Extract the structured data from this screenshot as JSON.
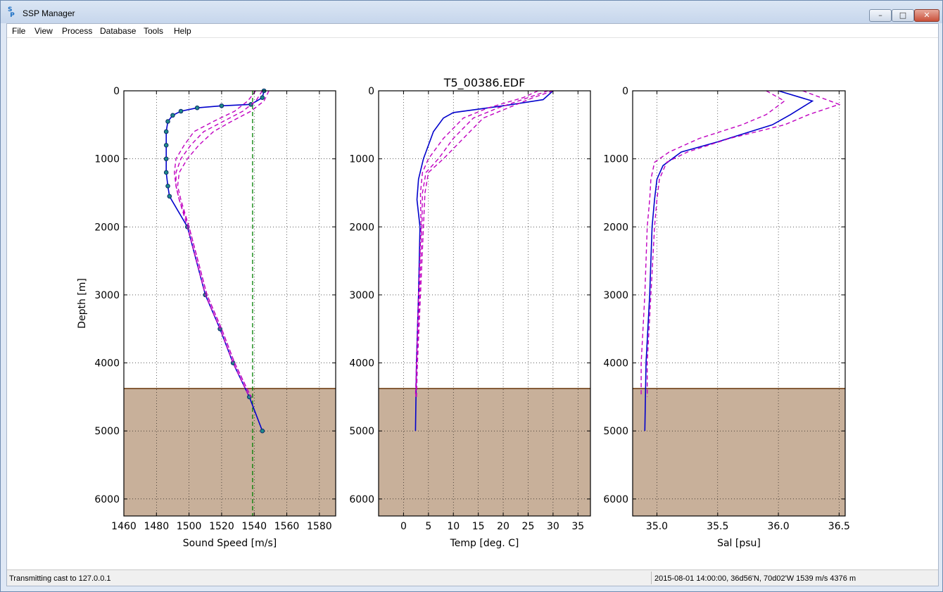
{
  "window": {
    "title": "SSP Manager",
    "icon": "ssp-logo-icon"
  },
  "menu": {
    "items": [
      "File",
      "View",
      "Process",
      "Database",
      "Tools",
      "Help"
    ]
  },
  "figure_title": "T5_00386.EDF",
  "status": {
    "left": "Transmitting cast to 127.0.0.1",
    "right": "2015-08-01 14:00:00, 36d56'N, 70d02'W 1539 m/s 4376 m"
  },
  "colors": {
    "profile": "#0000cc",
    "reference": "#c000c0",
    "seafloor": "#c8b09a",
    "seafloor_line": "#6b3b10",
    "surface_speed": "#008000"
  },
  "seafloor_depth": 4376,
  "chart_data": [
    {
      "type": "line",
      "xlabel": "Sound Speed [m/s]",
      "ylabel": "Depth [m]",
      "xlim": [
        1460,
        1590
      ],
      "ylim": [
        6250,
        0
      ],
      "xticks": [
        1460,
        1480,
        1500,
        1520,
        1540,
        1560,
        1580
      ],
      "yticks": [
        0,
        1000,
        2000,
        3000,
        4000,
        5000,
        6000
      ],
      "grid": true,
      "surface_sound_speed": 1539,
      "series": [
        {
          "values": [
            [
              1546,
              0
            ],
            [
              1545,
              100
            ],
            [
              1538,
              200
            ],
            [
              1520,
              220
            ],
            [
              1505,
              250
            ],
            [
              1495,
              300
            ],
            [
              1490,
              360
            ],
            [
              1487,
              450
            ],
            [
              1486,
              600
            ],
            [
              1486,
              800
            ],
            [
              1486,
              1000
            ],
            [
              1486,
              1200
            ],
            [
              1487,
              1400
            ],
            [
              1488,
              1550
            ],
            [
              1499,
              2000
            ],
            [
              1510,
              3000
            ],
            [
              1519,
              3500
            ],
            [
              1527,
              4000
            ],
            [
              1537,
              4500
            ],
            [
              1545,
              5000
            ]
          ],
          "markers": true
        },
        {
          "values": [
            [
              1541,
              0
            ],
            [
              1536,
              150
            ],
            [
              1528,
              300
            ],
            [
              1515,
              450
            ],
            [
              1503,
              600
            ],
            [
              1497,
              800
            ],
            [
              1492,
              1000
            ],
            [
              1491,
              1200
            ],
            [
              1492,
              1400
            ],
            [
              1494,
              1600
            ],
            [
              1499,
              2000
            ],
            [
              1510,
              3000
            ],
            [
              1519,
              3500
            ],
            [
              1527,
              4000
            ],
            [
              1537,
              4500
            ]
          ],
          "style": "dashed"
        },
        {
          "values": [
            [
              1545,
              0
            ],
            [
              1541,
              150
            ],
            [
              1533,
              300
            ],
            [
              1521,
              450
            ],
            [
              1509,
              600
            ],
            [
              1501,
              800
            ],
            [
              1495,
              1000
            ],
            [
              1492,
              1200
            ],
            [
              1492,
              1400
            ],
            [
              1494,
              1600
            ],
            [
              1500,
              2000
            ],
            [
              1511,
              3000
            ],
            [
              1520,
              3500
            ],
            [
              1528,
              4000
            ],
            [
              1538,
              4500
            ]
          ],
          "style": "dashed"
        },
        {
          "values": [
            [
              1549,
              0
            ],
            [
              1546,
              150
            ],
            [
              1538,
              300
            ],
            [
              1526,
              450
            ],
            [
              1515,
              600
            ],
            [
              1506,
              800
            ],
            [
              1499,
              1000
            ],
            [
              1494,
              1200
            ],
            [
              1493,
              1400
            ],
            [
              1495,
              1600
            ],
            [
              1500,
              2000
            ],
            [
              1511,
              3000
            ],
            [
              1520,
              3500
            ],
            [
              1528,
              4000
            ],
            [
              1538,
              4500
            ]
          ],
          "style": "dashed"
        }
      ]
    },
    {
      "type": "line",
      "title": "T5_00386.EDF",
      "xlabel": "Temp [deg. C]",
      "xlim": [
        -5,
        37.5
      ],
      "ylim": [
        6250,
        0
      ],
      "xticks": [
        0,
        5,
        10,
        15,
        20,
        25,
        30,
        35
      ],
      "yticks": [
        0,
        1000,
        2000,
        3000,
        4000,
        5000,
        6000
      ],
      "grid": true,
      "series": [
        {
          "values": [
            [
              30,
              0
            ],
            [
              28,
              130
            ],
            [
              20,
              220
            ],
            [
              10,
              320
            ],
            [
              8,
              400
            ],
            [
              6,
              600
            ],
            [
              4,
              1000
            ],
            [
              3,
              1300
            ],
            [
              2.7,
              1600
            ],
            [
              3.3,
              2000
            ],
            [
              3,
              3000
            ],
            [
              2.6,
              4000
            ],
            [
              2.4,
              5000
            ]
          ]
        },
        {
          "values": [
            [
              27,
              0
            ],
            [
              24,
              100
            ],
            [
              17,
              250
            ],
            [
              12,
              400
            ],
            [
              8,
              700
            ],
            [
              5,
              1000
            ],
            [
              3.8,
              1200
            ],
            [
              3.4,
              1500
            ],
            [
              3.5,
              2000
            ],
            [
              3,
              3000
            ],
            [
              2.6,
              4000
            ],
            [
              2.4,
              4500
            ]
          ],
          "style": "dashed"
        },
        {
          "values": [
            [
              29,
              0
            ],
            [
              25,
              100
            ],
            [
              19,
              250
            ],
            [
              14,
              400
            ],
            [
              10,
              700
            ],
            [
              7,
              1000
            ],
            [
              4.5,
              1200
            ],
            [
              3.8,
              1500
            ],
            [
              3.7,
              2000
            ],
            [
              3.2,
              3000
            ],
            [
              2.7,
              4000
            ],
            [
              2.5,
              4500
            ]
          ],
          "style": "dashed"
        },
        {
          "values": [
            [
              30,
              0
            ],
            [
              26,
              100
            ],
            [
              21,
              250
            ],
            [
              16,
              400
            ],
            [
              12,
              700
            ],
            [
              8,
              1000
            ],
            [
              5,
              1200
            ],
            [
              4.3,
              1500
            ],
            [
              4,
              2000
            ],
            [
              3.4,
              3000
            ],
            [
              2.8,
              4000
            ],
            [
              2.6,
              4500
            ]
          ],
          "style": "dashed"
        }
      ]
    },
    {
      "type": "line",
      "xlabel": "Sal [psu]",
      "xlim": [
        34.8,
        36.55
      ],
      "ylim": [
        6250,
        0
      ],
      "xticks": [
        35.0,
        35.5,
        36.0,
        36.5
      ],
      "yticks": [
        0,
        1000,
        2000,
        3000,
        4000,
        5000,
        6000
      ],
      "grid": true,
      "series": [
        {
          "values": [
            [
              36.0,
              0
            ],
            [
              36.28,
              150
            ],
            [
              36.1,
              350
            ],
            [
              35.95,
              500
            ],
            [
              35.5,
              750
            ],
            [
              35.2,
              900
            ],
            [
              35.05,
              1100
            ],
            [
              35.0,
              1300
            ],
            [
              34.98,
              1600
            ],
            [
              34.96,
              2000
            ],
            [
              34.94,
              3000
            ],
            [
              34.91,
              4000
            ],
            [
              34.9,
              5000
            ]
          ]
        },
        {
          "values": [
            [
              35.9,
              0
            ],
            [
              36.05,
              150
            ],
            [
              35.9,
              350
            ],
            [
              35.7,
              500
            ],
            [
              35.35,
              700
            ],
            [
              35.1,
              900
            ],
            [
              34.98,
              1050
            ],
            [
              34.95,
              1300
            ],
            [
              34.94,
              1600
            ],
            [
              34.92,
              2000
            ],
            [
              34.9,
              3000
            ],
            [
              34.87,
              4000
            ],
            [
              34.87,
              4500
            ]
          ],
          "style": "dashed"
        },
        {
          "values": [
            [
              36.2,
              0
            ],
            [
              36.5,
              200
            ],
            [
              36.25,
              350
            ],
            [
              36.05,
              500
            ],
            [
              35.6,
              700
            ],
            [
              35.25,
              900
            ],
            [
              35.08,
              1050
            ],
            [
              35.02,
              1300
            ],
            [
              35.0,
              1600
            ],
            [
              34.98,
              2000
            ],
            [
              34.95,
              3000
            ],
            [
              34.92,
              4000
            ],
            [
              34.92,
              4500
            ]
          ],
          "style": "dashed"
        }
      ]
    }
  ]
}
